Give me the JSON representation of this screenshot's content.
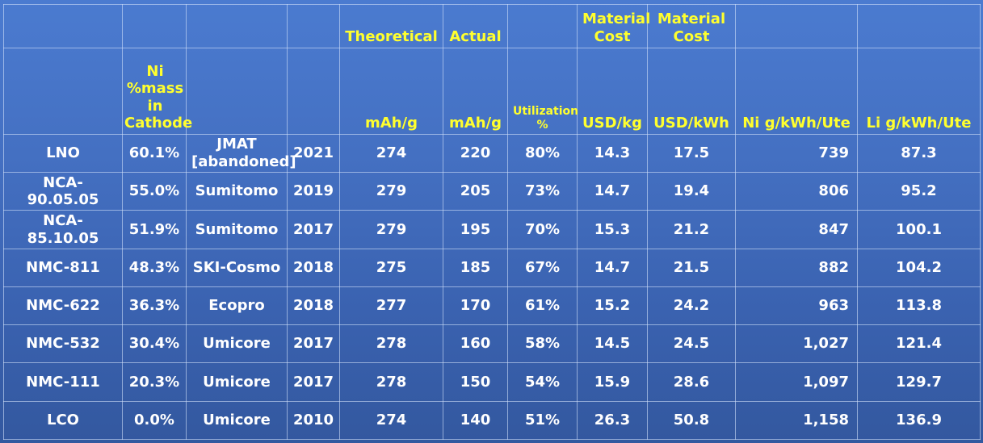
{
  "header_row1": {
    "theoretical": "Theoretical",
    "actual": "Actual",
    "material_cost_1": "Material Cost",
    "material_cost_2": "Material Cost"
  },
  "header_row2": {
    "ni_mass_line1": "Ni",
    "ni_mass_line2": "%mass",
    "ni_mass_line3": "in",
    "ni_mass_line4": "Cathode",
    "theoretical_unit": "mAh/g",
    "actual_unit": "mAh/g",
    "utilization_line1": "Utilization",
    "utilization_line2": "%",
    "cost_kg_unit": "USD/kg",
    "cost_kwh_unit": "USD/kWh",
    "ni_g": "Ni g/kWh/Ute",
    "li_g": "Li g/kWh/Ute"
  },
  "rows": [
    {
      "name": "LNO",
      "ni": "60.1%",
      "company_line1": "JMAT",
      "company_line2": "[abandoned]",
      "year": "2021",
      "theoretical": "274",
      "actual": "220",
      "utilization": "80%",
      "usd_kg": "14.3",
      "usd_kwh": "17.5",
      "ni_g": "739",
      "li_g": "87.3"
    },
    {
      "name": "NCA-90.05.05",
      "ni": "55.0%",
      "company_line1": "Sumitomo",
      "company_line2": "",
      "year": "2019",
      "theoretical": "279",
      "actual": "205",
      "utilization": "73%",
      "usd_kg": "14.7",
      "usd_kwh": "19.4",
      "ni_g": "806",
      "li_g": "95.2"
    },
    {
      "name": "NCA-85.10.05",
      "ni": "51.9%",
      "company_line1": "Sumitomo",
      "company_line2": "",
      "year": "2017",
      "theoretical": "279",
      "actual": "195",
      "utilization": "70%",
      "usd_kg": "15.3",
      "usd_kwh": "21.2",
      "ni_g": "847",
      "li_g": "100.1"
    },
    {
      "name": "NMC-811",
      "ni": "48.3%",
      "company_line1": "SKI-Cosmo",
      "company_line2": "",
      "year": "2018",
      "theoretical": "275",
      "actual": "185",
      "utilization": "67%",
      "usd_kg": "14.7",
      "usd_kwh": "21.5",
      "ni_g": "882",
      "li_g": "104.2"
    },
    {
      "name": "NMC-622",
      "ni": "36.3%",
      "company_line1": "Ecopro",
      "company_line2": "",
      "year": "2018",
      "theoretical": "277",
      "actual": "170",
      "utilization": "61%",
      "usd_kg": "15.2",
      "usd_kwh": "24.2",
      "ni_g": "963",
      "li_g": "113.8"
    },
    {
      "name": "NMC-532",
      "ni": "30.4%",
      "company_line1": "Umicore",
      "company_line2": "",
      "year": "2017",
      "theoretical": "278",
      "actual": "160",
      "utilization": "58%",
      "usd_kg": "14.5",
      "usd_kwh": "24.5",
      "ni_g": "1,027",
      "li_g": "121.4"
    },
    {
      "name": "NMC-111",
      "ni": "20.3%",
      "company_line1": "Umicore",
      "company_line2": "",
      "year": "2017",
      "theoretical": "278",
      "actual": "150",
      "utilization": "54%",
      "usd_kg": "15.9",
      "usd_kwh": "28.6",
      "ni_g": "1,097",
      "li_g": "129.7"
    },
    {
      "name": "LCO",
      "ni": "0.0%",
      "company_line1": "Umicore",
      "company_line2": "",
      "year": "2010",
      "theoretical": "274",
      "actual": "140",
      "utilization": "51%",
      "usd_kg": "26.3",
      "usd_kwh": "50.8",
      "ni_g": "1,158",
      "li_g": "136.9"
    }
  ]
}
